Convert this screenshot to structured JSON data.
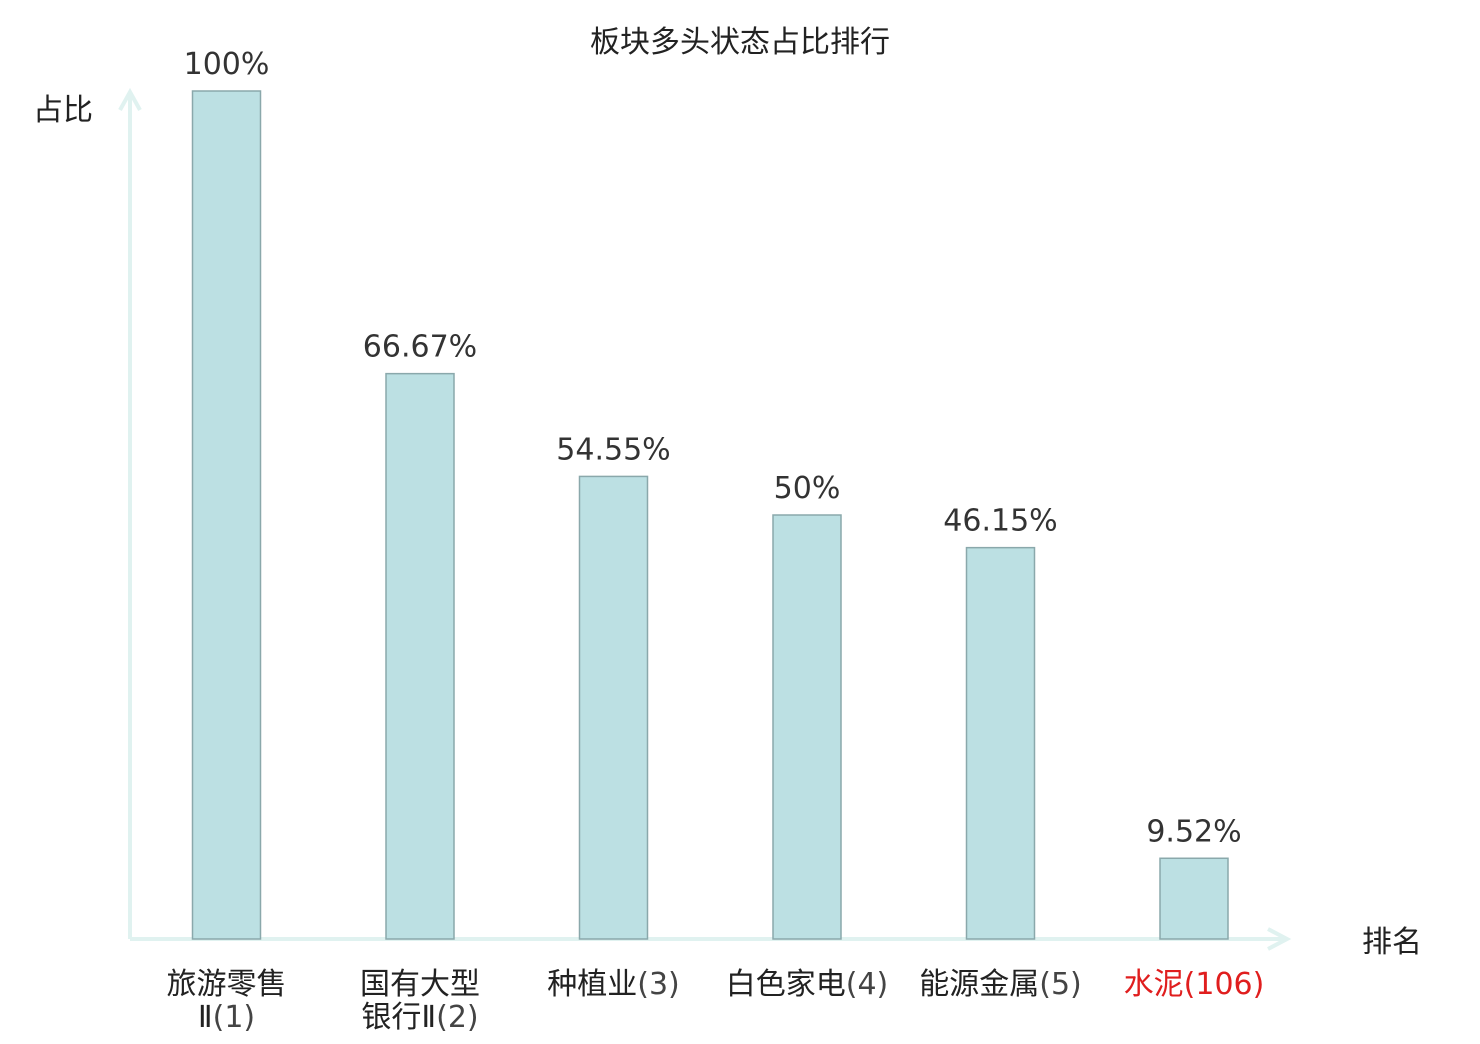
{
  "chart_data": {
    "type": "bar",
    "title": "板块多头状态占比排行",
    "ylabel": "占比",
    "xlabel": "排名",
    "ylim": [
      0,
      100
    ],
    "grid": false,
    "legend": "none",
    "categories": [
      {
        "name_lines": [
          "旅游零售",
          "Ⅱ"
        ],
        "rank": "(1)",
        "highlight": false
      },
      {
        "name_lines": [
          "国有大型",
          "银行Ⅱ"
        ],
        "rank": "(2)",
        "highlight": false
      },
      {
        "name_lines": [
          "种植业"
        ],
        "rank": "(3)",
        "highlight": false
      },
      {
        "name_lines": [
          "白色家电"
        ],
        "rank": "(4)",
        "highlight": false
      },
      {
        "name_lines": [
          "能源金属"
        ],
        "rank": "(5)",
        "highlight": false
      },
      {
        "name_lines": [
          "水泥"
        ],
        "rank": "(106)",
        "highlight": true
      }
    ],
    "values": [
      100,
      66.67,
      54.55,
      50,
      46.15,
      9.52
    ],
    "value_labels": [
      "100%",
      "66.67%",
      "54.55%",
      "50%",
      "46.15%",
      "9.52%"
    ]
  },
  "colors": {
    "bar_fill": "#bce0e3",
    "bar_stroke": "#8aa8ab",
    "axis": "#e0f2f0",
    "text": "#222222",
    "rank_text": "#444444",
    "highlight": "#e01e1e"
  }
}
